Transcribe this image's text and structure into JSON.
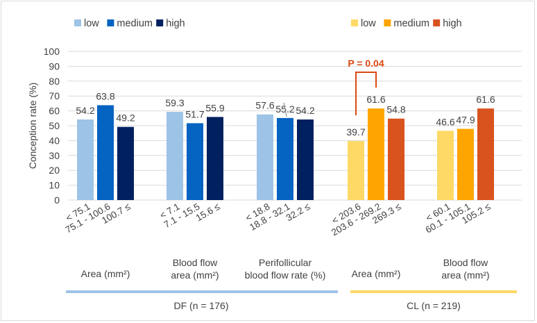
{
  "chart_data": {
    "type": "bar",
    "ylabel": "Conception rate (%)",
    "ylim": [
      0,
      100
    ],
    "yticks": [
      0,
      10,
      20,
      30,
      40,
      50,
      60,
      70,
      80,
      90,
      100
    ],
    "grid": true,
    "legend_left": {
      "placement": "top-left",
      "entries": [
        {
          "label": "low",
          "color": "#9dc3e6"
        },
        {
          "label": "medium",
          "color": "#0563c1"
        },
        {
          "label": "high",
          "color": "#002060"
        }
      ]
    },
    "legend_right": {
      "placement": "top-right",
      "entries": [
        {
          "label": "low",
          "color": "#ffd966"
        },
        {
          "label": "medium",
          "color": "#ffa500"
        },
        {
          "label": "high",
          "color": "#d9531e"
        }
      ]
    },
    "groups": [
      {
        "label_line1": "Area (mm²)",
        "label_line2": "",
        "palette": "left",
        "categories": [
          "< 75.1",
          "75.1 - 100.6",
          "100.7 ≤"
        ],
        "values": [
          54.2,
          63.8,
          49.2
        ]
      },
      {
        "label_line1": "Blood flow",
        "label_line2": "area (mm²)",
        "palette": "left",
        "categories": [
          "< 7.1",
          "7.1 - 15.5",
          "15.6 ≤"
        ],
        "values": [
          59.3,
          51.7,
          55.9
        ]
      },
      {
        "label_line1": "Perifollicular",
        "label_line2": "blood flow rate (%)",
        "palette": "left",
        "categories": [
          "< 18.8",
          "18.8 - 32.1",
          "32.2 ≤"
        ],
        "values": [
          57.6,
          55.2,
          54.2
        ]
      },
      {
        "label_line1": "Area (mm²)",
        "label_line2": "",
        "palette": "right",
        "categories": [
          "< 203.6",
          "203.6 - 269.2",
          "269.3 ≤"
        ],
        "values": [
          39.7,
          61.6,
          54.8
        ]
      },
      {
        "label_line1": "Blood flow",
        "label_line2": "area (mm²)",
        "palette": "right",
        "categories": [
          "< 60.1",
          "60.1 - 105.1",
          "105.2 ≤"
        ],
        "values": [
          46.6,
          47.9,
          61.6
        ]
      }
    ],
    "sections": [
      {
        "label": "DF (n = 176)",
        "color": "#9dc3e6"
      },
      {
        "label": "CL (n = 219)",
        "color": "#ffd966"
      }
    ],
    "annotation": {
      "text": "P = 0.04",
      "group": 3,
      "from_bar": 0,
      "to_bar": 1,
      "color": "#d9480f"
    }
  }
}
